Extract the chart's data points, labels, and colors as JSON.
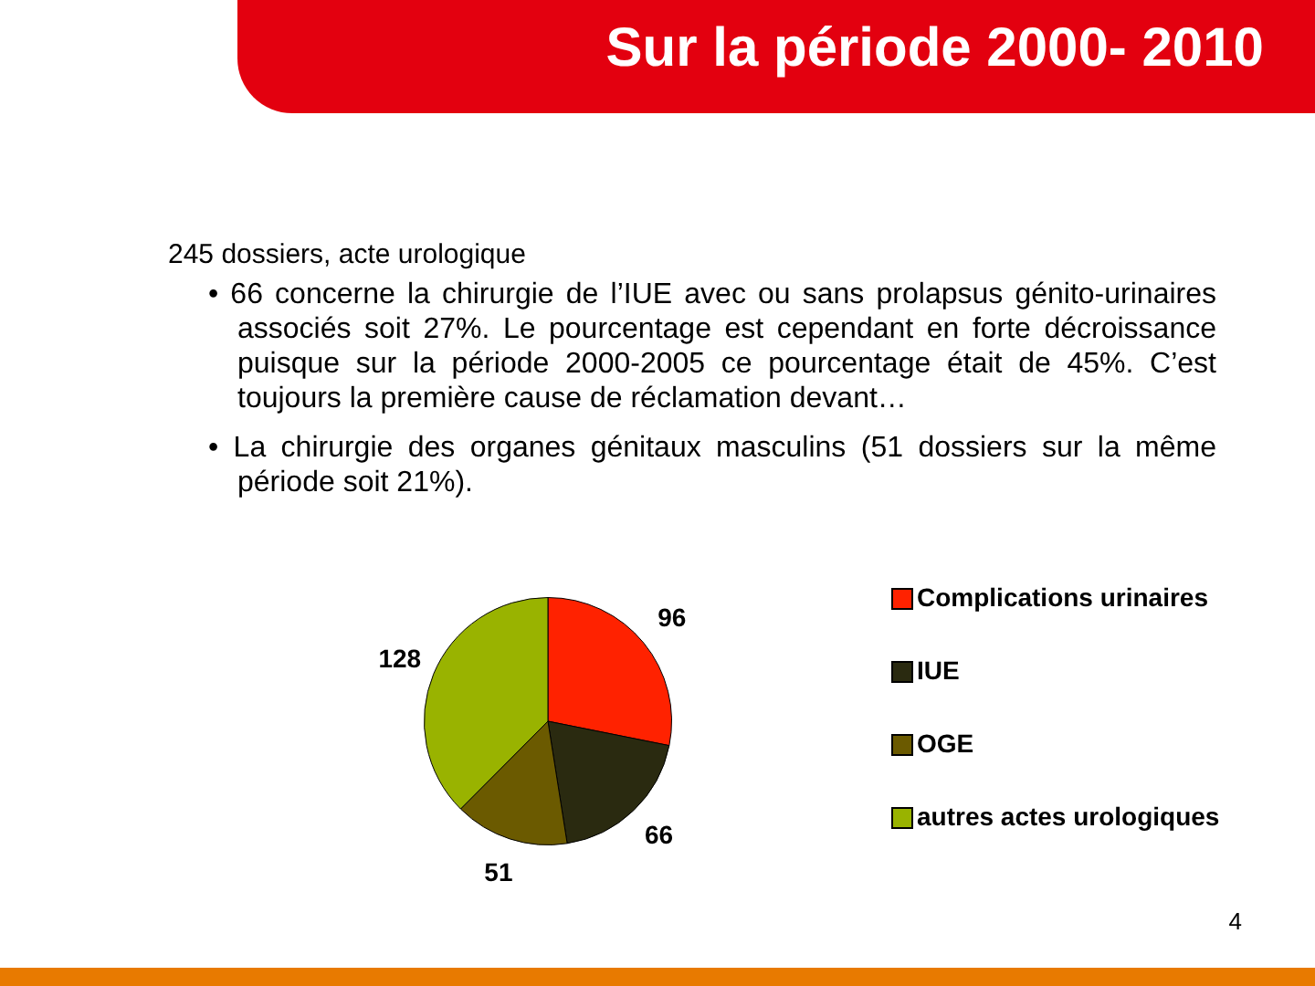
{
  "chart_data": {
    "type": "pie",
    "title": "Sur la période 2000- 2010",
    "annotations": [
      "245 dossiers, acte urologique",
      "• 66 concerne la chirurgie de l’IUE  avec ou sans prolapsus génito-urinaires associés soit 27%. Le pourcentage est cependant en forte décroissance puisque sur la période 2000-2005 ce pourcentage était de 45%. C’est toujours la première cause de réclamation devant…",
      "• La chirurgie des organes génitaux masculins (51 dossiers sur la même période soit 21%).",
      "4"
    ],
    "categories": [
      "Complications urinaires",
      "IUE",
      "OGE",
      "autres actes urologiques"
    ],
    "values": [
      96,
      66,
      51,
      128
    ],
    "colors": [
      "#ff2200",
      "#2a2a10",
      "#6b5a00",
      "#99b300"
    ],
    "data_labels": true,
    "legend": "right"
  }
}
